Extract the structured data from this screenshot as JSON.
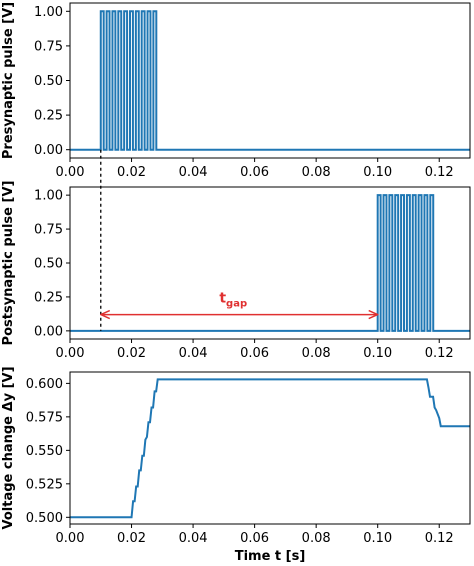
{
  "chart_data": [
    {
      "type": "line",
      "ylabel": "Presynaptic pulse [V]",
      "xlabel": "",
      "xlim": [
        0.0,
        0.13
      ],
      "ylim": [
        -0.06,
        1.06
      ],
      "x_ticks": [
        "0.00",
        "0.02",
        "0.04",
        "0.06",
        "0.08",
        "0.10",
        "0.12"
      ],
      "y_ticks": [
        "0.00",
        "0.25",
        "0.50",
        "0.75",
        "1.00"
      ],
      "series": [
        {
          "color": "#1f77b4",
          "pulse_train": {
            "start": 0.01,
            "end": 0.029,
            "count": 10,
            "low": 0.0,
            "high": 1.0
          }
        }
      ],
      "grid": false
    },
    {
      "type": "line",
      "ylabel": "Postsynaptic pulse [V]",
      "xlabel": "",
      "xlim": [
        0.0,
        0.13
      ],
      "ylim": [
        -0.06,
        1.06
      ],
      "x_ticks": [
        "0.00",
        "0.02",
        "0.04",
        "0.06",
        "0.08",
        "0.10",
        "0.12"
      ],
      "y_ticks": [
        "0.00",
        "0.25",
        "0.50",
        "0.75",
        "1.00"
      ],
      "series": [
        {
          "color": "#1f77b4",
          "pulse_train": {
            "start": 0.1,
            "end": 0.119,
            "count": 10,
            "low": 0.0,
            "high": 1.0
          }
        }
      ],
      "annotations": [
        {
          "type": "vline",
          "x": 0.01,
          "style": "dotted",
          "color": "#000000",
          "spans_panels": [
            0,
            1
          ]
        },
        {
          "type": "double-arrow",
          "x_from": 0.01,
          "x_to": 0.1,
          "y": 0.12,
          "color": "#e03030",
          "label": "t",
          "label_sub": "gap"
        }
      ],
      "grid": false
    },
    {
      "type": "line",
      "ylabel": "Voltage change Δy [V]",
      "xlabel": "Time t [s]",
      "xlim": [
        0.0,
        0.13
      ],
      "ylim": [
        0.495,
        0.6085
      ],
      "x_ticks": [
        "0.00",
        "0.02",
        "0.04",
        "0.06",
        "0.08",
        "0.10",
        "0.12"
      ],
      "y_ticks": [
        "0.500",
        "0.525",
        "0.550",
        "0.575",
        "0.600"
      ],
      "series": [
        {
          "color": "#1f77b4",
          "x": [
            0.0,
            0.0195,
            0.02,
            0.0205,
            0.021,
            0.0215,
            0.022,
            0.0225,
            0.023,
            0.0235,
            0.024,
            0.0245,
            0.025,
            0.0255,
            0.026,
            0.0265,
            0.027,
            0.0275,
            0.028,
            0.0285,
            0.116,
            0.1165,
            0.117,
            0.118,
            0.1185,
            0.119,
            0.12,
            0.1205,
            0.13
          ],
          "y": [
            0.5,
            0.5,
            0.5,
            0.512,
            0.512,
            0.523,
            0.523,
            0.535,
            0.535,
            0.546,
            0.546,
            0.558,
            0.56,
            0.571,
            0.571,
            0.582,
            0.582,
            0.594,
            0.594,
            0.603,
            0.603,
            0.597,
            0.59,
            0.59,
            0.582,
            0.58,
            0.574,
            0.568,
            0.568
          ]
        }
      ],
      "grid": false
    }
  ]
}
